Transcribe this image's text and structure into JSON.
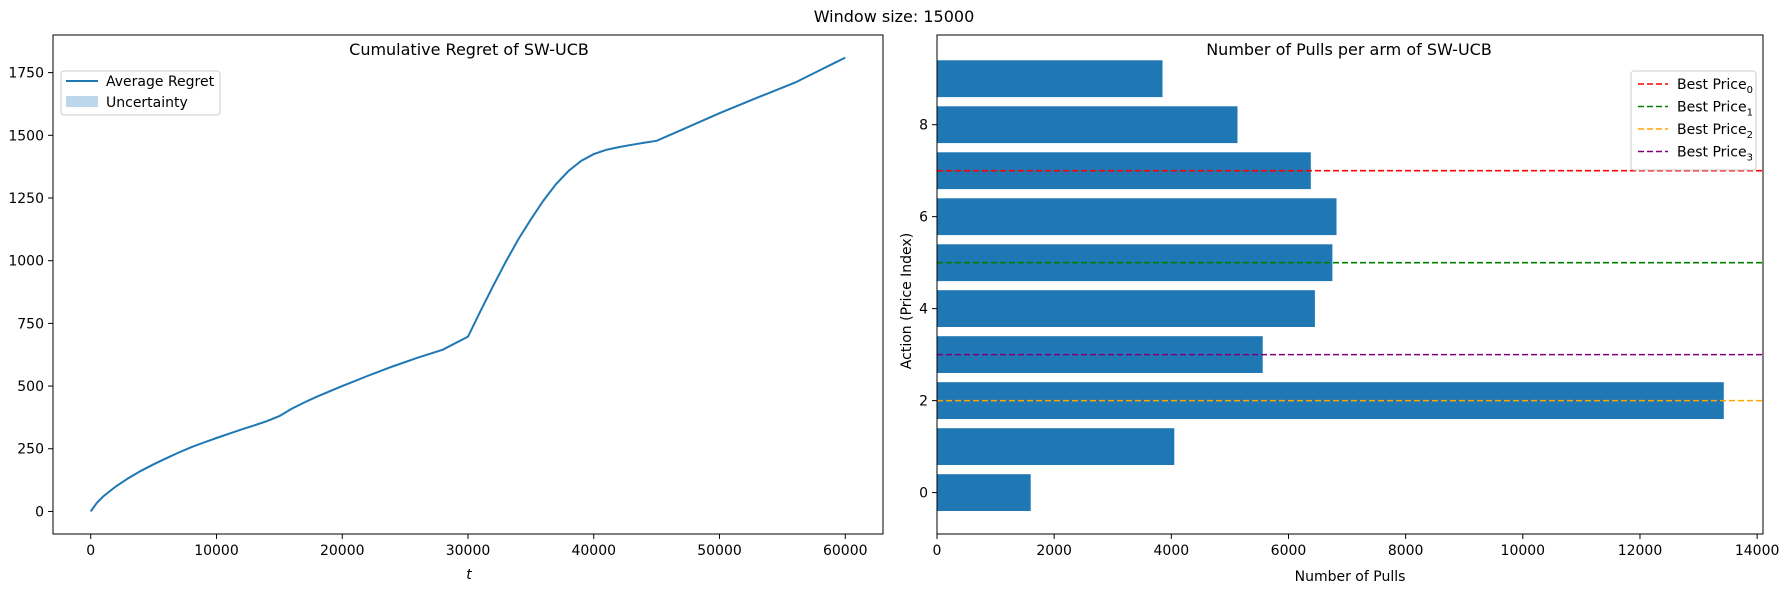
{
  "figure": {
    "suptitle": "Window size: 15000"
  },
  "chart_data": [
    {
      "type": "line",
      "title": "Cumulative Regret of SW-UCB",
      "xlabel": "t",
      "ylabel": "",
      "xlim": [
        -3000,
        63000
      ],
      "ylim": [
        -90,
        1900
      ],
      "xticks": [
        0,
        10000,
        20000,
        30000,
        40000,
        50000,
        60000
      ],
      "yticks": [
        0,
        250,
        500,
        750,
        1000,
        1250,
        1500,
        1750
      ],
      "legend": {
        "placement": "upper-left",
        "entries": [
          "Average Regret",
          "Uncertainty"
        ]
      },
      "colors": {
        "line": "#1f77b4",
        "uncertainty": "#bcd6ec"
      },
      "series": [
        {
          "name": "Average Regret",
          "x": [
            0,
            500,
            1000,
            2000,
            3000,
            4000,
            5000,
            6000,
            7000,
            8000,
            9000,
            10000,
            11000,
            12000,
            13000,
            14000,
            15000,
            16000,
            17000,
            18000,
            20000,
            22000,
            24000,
            26000,
            28000,
            30000,
            31000,
            32000,
            33000,
            34000,
            35000,
            36000,
            37000,
            38000,
            39000,
            40000,
            41000,
            42000,
            43000,
            44000,
            45000,
            46000,
            47000,
            50000,
            53000,
            56000,
            57000,
            58000,
            59000,
            60000
          ],
          "y": [
            0,
            35,
            60,
            100,
            133,
            162,
            188,
            212,
            235,
            256,
            275,
            293,
            310,
            327,
            343,
            360,
            380,
            410,
            435,
            458,
            500,
            540,
            578,
            613,
            645,
            697,
            800,
            900,
            995,
            1085,
            1165,
            1240,
            1305,
            1358,
            1398,
            1425,
            1442,
            1453,
            1462,
            1470,
            1478,
            1500,
            1522,
            1588,
            1650,
            1710,
            1735,
            1760,
            1785,
            1810
          ]
        }
      ]
    },
    {
      "type": "bar",
      "orientation": "horizontal",
      "title": "Number of Pulls per arm of SW-UCB",
      "xlabel": "Number of Pulls",
      "ylabel": "Action (Price Index)",
      "xlim": [
        0,
        14100
      ],
      "ylim": [
        -0.9,
        9.95
      ],
      "xticks": [
        0,
        2000,
        4000,
        6000,
        8000,
        10000,
        12000,
        14000
      ],
      "yticks": [
        0,
        2,
        4,
        6,
        8
      ],
      "categories": [
        0,
        1,
        2,
        3,
        4,
        5,
        6,
        7,
        8,
        9
      ],
      "values": [
        1600,
        4050,
        13430,
        5560,
        6450,
        6750,
        6820,
        6380,
        5130,
        3850
      ],
      "bar_color": "#1f77b4",
      "legend": {
        "placement": "upper-right"
      },
      "hlines": [
        {
          "base": "Best Price",
          "sub": "0",
          "y": 7,
          "color": "#ff0000"
        },
        {
          "base": "Best Price",
          "sub": "1",
          "y": 5,
          "color": "#008000"
        },
        {
          "base": "Best Price",
          "sub": "2",
          "y": 2,
          "color": "#ffa500"
        },
        {
          "base": "Best Price",
          "sub": "3",
          "y": 3,
          "color": "#800080"
        }
      ]
    }
  ]
}
